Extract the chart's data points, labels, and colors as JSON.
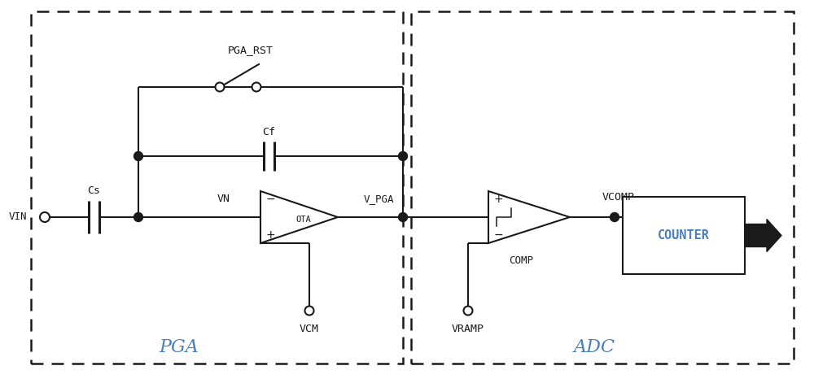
{
  "bg_color": "#ffffff",
  "line_color": "#1a1a1a",
  "pga_label_color": "#4a7fc1",
  "adc_label_color": "#4a7fc1",
  "counter_text_color": "#4a7fc1",
  "fig_width": 10.0,
  "fig_height": 4.82,
  "dpi": 100,
  "pga_label": "PGA",
  "adc_label": "ADC",
  "counter_label": "COUNTER",
  "vin_label": "VIN",
  "vcm_label": "VCM",
  "vramp_label": "VRAMP",
  "cs_label": "Cs",
  "cf_label": "Cf",
  "ota_label": "OTA",
  "vn_label": "VN",
  "vpga_label": "V_PGA",
  "vcomp_label": "VCOMP",
  "comp_label": "COMP",
  "pga_rst_label": "PGA_RST"
}
